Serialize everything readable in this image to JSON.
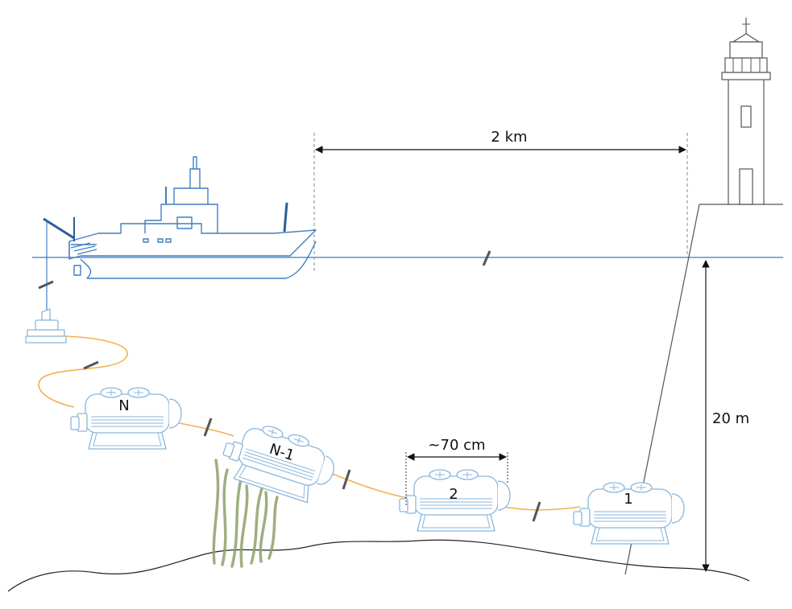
{
  "distance_label": "2 km",
  "depth_label": "20 m",
  "module_length_label": "~70 cm",
  "modules": [
    {
      "label": "N"
    },
    {
      "label": "N-1"
    },
    {
      "label": "2"
    },
    {
      "label": "1"
    }
  ],
  "colors": {
    "water_line": "#5b8fc9",
    "ship": "#3f7fc4",
    "module": "#88b6dc",
    "cable": "#f2b24e",
    "seaweed": "#8fa06a",
    "seabed": "#222222",
    "lighthouse": "#555555"
  }
}
